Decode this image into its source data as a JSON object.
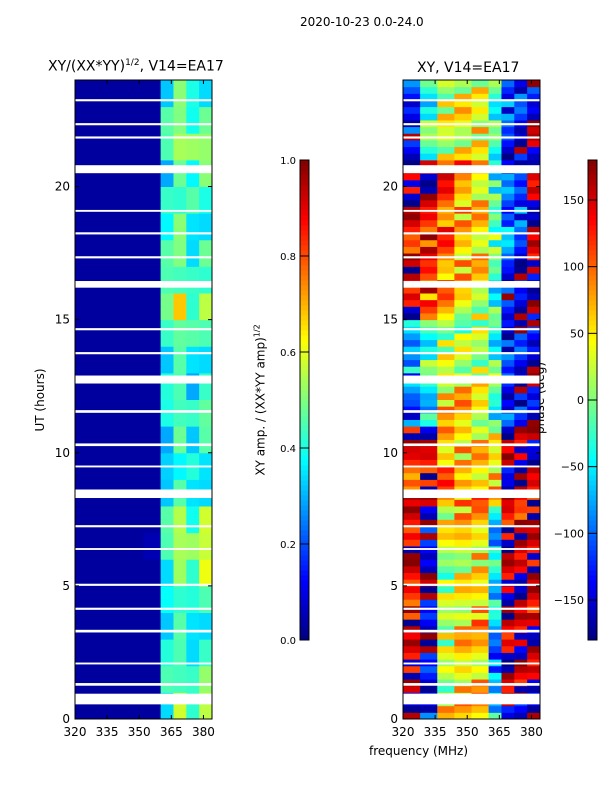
{
  "suptitle": "2020-10-23 0.0-24.0",
  "chart_data": [
    {
      "type": "heatmap",
      "title": "XY/(XX*YY)^1/2, V14=EA17",
      "title_base": "XY/(XX*YY)",
      "title_sup": "1/2",
      "title_rest": ", V14=EA17",
      "xlabel": "frequency (MHz)",
      "ylabel": "UT (hours)",
      "xlim": [
        320,
        384
      ],
      "ylim": [
        0,
        24
      ],
      "xticks": [
        "320",
        "335",
        "350",
        "365",
        "380"
      ],
      "xtick_values": [
        320,
        335,
        350,
        365,
        380
      ],
      "yticks": [
        "0",
        "5",
        "10",
        "15",
        "20"
      ],
      "ytick_values": [
        0,
        5,
        10,
        15,
        20
      ],
      "freq_bins_mhz": [
        320,
        328,
        336,
        344,
        352,
        360,
        366,
        372,
        378,
        384
      ],
      "values_by_hour": [
        [
          0.03,
          0.03,
          0.03,
          0.03,
          0.03,
          0.4,
          0.55,
          0.45,
          0.5
        ],
        [
          0.03,
          0.03,
          0.03,
          0.03,
          0.03,
          0.45,
          0.5,
          0.4,
          0.55
        ],
        [
          0.03,
          0.03,
          0.03,
          0.03,
          0.03,
          0.35,
          0.45,
          0.4,
          0.4
        ],
        [
          0.03,
          0.03,
          0.03,
          0.03,
          0.03,
          0.35,
          0.4,
          0.35,
          0.4
        ],
        [
          0.03,
          0.03,
          0.03,
          0.03,
          0.03,
          0.35,
          0.45,
          0.35,
          0.45
        ],
        [
          0.03,
          0.03,
          0.03,
          0.03,
          0.03,
          0.4,
          0.5,
          0.45,
          0.55
        ],
        [
          0.03,
          0.03,
          0.03,
          0.03,
          0.05,
          0.45,
          0.6,
          0.5,
          0.6
        ],
        [
          0.03,
          0.03,
          0.03,
          0.03,
          0.03,
          0.4,
          0.55,
          0.45,
          0.55
        ],
        [
          0.03,
          0.03,
          0.03,
          0.03,
          0.03,
          0.35,
          0.4,
          0.35,
          0.4
        ],
        [
          0.03,
          0.03,
          0.03,
          0.03,
          0.03,
          0.3,
          0.4,
          0.35,
          0.35
        ],
        [
          0.03,
          0.03,
          0.03,
          0.03,
          0.03,
          0.35,
          0.45,
          0.35,
          0.4
        ],
        [
          0.03,
          0.03,
          0.03,
          0.03,
          0.03,
          0.4,
          0.5,
          0.4,
          0.5
        ],
        [
          0.03,
          0.03,
          0.03,
          0.03,
          0.03,
          0.35,
          0.45,
          0.35,
          0.4
        ],
        [
          0.03,
          0.03,
          0.03,
          0.03,
          0.03,
          0.35,
          0.4,
          0.35,
          0.4
        ],
        [
          0.03,
          0.03,
          0.03,
          0.03,
          0.03,
          0.4,
          0.5,
          0.4,
          0.45
        ],
        [
          0.03,
          0.03,
          0.03,
          0.03,
          0.03,
          0.55,
          0.65,
          0.45,
          0.5
        ],
        [
          0.03,
          0.03,
          0.03,
          0.03,
          0.03,
          0.45,
          0.5,
          0.4,
          0.45
        ],
        [
          0.03,
          0.03,
          0.03,
          0.03,
          0.03,
          0.4,
          0.5,
          0.4,
          0.45
        ],
        [
          0.03,
          0.03,
          0.03,
          0.03,
          0.03,
          0.4,
          0.45,
          0.35,
          0.4
        ],
        [
          0.03,
          0.03,
          0.03,
          0.03,
          0.03,
          0.4,
          0.45,
          0.4,
          0.4
        ],
        [
          0.03,
          0.03,
          0.03,
          0.03,
          0.03,
          0.35,
          0.45,
          0.4,
          0.45
        ],
        [
          0.03,
          0.03,
          0.03,
          0.03,
          0.03,
          0.45,
          0.6,
          0.5,
          0.55
        ],
        [
          0.03,
          0.03,
          0.03,
          0.03,
          0.03,
          0.4,
          0.5,
          0.45,
          0.45
        ],
        [
          0.03,
          0.03,
          0.03,
          0.03,
          0.03,
          0.35,
          0.45,
          0.4,
          0.4
        ]
      ],
      "colorbar": {
        "label": "XY amp. / (XX*YY amp)",
        "label_sup": "1/2",
        "range": [
          0.0,
          1.0
        ],
        "ticks": [
          "0.0",
          "0.2",
          "0.4",
          "0.6",
          "0.8",
          "1.0"
        ],
        "tick_values": [
          0,
          0.2,
          0.4,
          0.6,
          0.8,
          1.0
        ],
        "colormap": "jet"
      }
    },
    {
      "type": "heatmap",
      "title": "XY, V14=EA17",
      "xlim": [
        320,
        384
      ],
      "ylim": [
        0,
        24
      ],
      "xticks": [
        "320",
        "335",
        "350",
        "365",
        "380"
      ],
      "xtick_values": [
        320,
        335,
        350,
        365,
        380
      ],
      "yticks": [
        "0",
        "5",
        "10",
        "15",
        "20"
      ],
      "ytick_values": [
        0,
        5,
        10,
        15,
        20
      ],
      "freq_bins_mhz": [
        320,
        328,
        336,
        344,
        352,
        360,
        366,
        372,
        378,
        384
      ],
      "values_by_hour": [
        [
          -150,
          -120,
          60,
          70,
          80,
          -60,
          -170,
          -160,
          -170
        ],
        [
          150,
          -150,
          20,
          60,
          70,
          -80,
          160,
          150,
          170
        ],
        [
          160,
          -160,
          10,
          50,
          60,
          -90,
          170,
          -170,
          160
        ],
        [
          150,
          -150,
          20,
          50,
          70,
          -80,
          160,
          170,
          -170
        ],
        [
          140,
          -150,
          20,
          40,
          60,
          -60,
          170,
          160,
          150
        ],
        [
          130,
          -160,
          10,
          40,
          50,
          -40,
          160,
          170,
          150
        ],
        [
          150,
          -160,
          20,
          50,
          60,
          -60,
          170,
          160,
          160
        ],
        [
          140,
          -150,
          30,
          60,
          60,
          -50,
          150,
          140,
          160
        ],
        [
          130,
          160,
          100,
          70,
          80,
          60,
          170,
          160,
          150
        ],
        [
          120,
          150,
          90,
          60,
          60,
          50,
          -170,
          170,
          160
        ],
        [
          150,
          170,
          80,
          70,
          60,
          40,
          170,
          160,
          -170
        ],
        [
          -120,
          -60,
          60,
          60,
          40,
          -30,
          -110,
          -130,
          -150
        ],
        [
          -90,
          -40,
          40,
          50,
          30,
          -10,
          -120,
          -150,
          -160
        ],
        [
          -60,
          -10,
          30,
          20,
          10,
          -30,
          -130,
          -140,
          -150
        ],
        [
          -80,
          -20,
          20,
          10,
          20,
          -40,
          -140,
          -150,
          -160
        ],
        [
          160,
          90,
          70,
          40,
          30,
          -20,
          -140,
          -160,
          -170
        ],
        [
          150,
          120,
          80,
          60,
          40,
          -30,
          -130,
          -150,
          -160
        ],
        [
          140,
          130,
          100,
          60,
          50,
          -20,
          -100,
          -130,
          170
        ],
        [
          150,
          140,
          110,
          70,
          60,
          -10,
          -90,
          -120,
          160
        ],
        [
          160,
          150,
          120,
          80,
          60,
          -20,
          -100,
          -110,
          170
        ],
        [
          170,
          160,
          130,
          90,
          70,
          -30,
          -110,
          -120,
          160
        ],
        [
          -150,
          -20,
          20,
          30,
          30,
          -40,
          -130,
          -150,
          -170
        ],
        [
          -120,
          -10,
          40,
          50,
          40,
          -30,
          -120,
          -140,
          -160
        ],
        [
          -130,
          -30,
          30,
          40,
          40,
          -20,
          -110,
          -130,
          -150
        ]
      ],
      "colorbar": {
        "label": "phase (deg)",
        "range": [
          -180,
          180
        ],
        "ticks": [
          "−150",
          "−100",
          "−50",
          "0",
          "50",
          "100",
          "150"
        ],
        "tick_values": [
          -150,
          -100,
          -50,
          0,
          50,
          100,
          150
        ],
        "colormap": "jet"
      }
    }
  ],
  "flagged_intervals_hours": [
    [
      0.55,
      0.95
    ],
    [
      1.25,
      1.35
    ],
    [
      2.05,
      2.12
    ],
    [
      3.25,
      3.35
    ],
    [
      4.1,
      4.18
    ],
    [
      5.0,
      5.08
    ],
    [
      6.35,
      6.42
    ],
    [
      7.2,
      7.28
    ],
    [
      8.3,
      8.62
    ],
    [
      9.45,
      9.52
    ],
    [
      10.25,
      10.35
    ],
    [
      11.5,
      11.6
    ],
    [
      12.6,
      12.9
    ],
    [
      13.7,
      13.78
    ],
    [
      14.6,
      14.68
    ],
    [
      16.2,
      16.45
    ],
    [
      17.3,
      17.38
    ],
    [
      18.2,
      18.28
    ],
    [
      19.05,
      19.12
    ],
    [
      20.5,
      20.8
    ],
    [
      21.8,
      21.88
    ],
    [
      22.3,
      22.38
    ],
    [
      23.2,
      23.28
    ]
  ]
}
